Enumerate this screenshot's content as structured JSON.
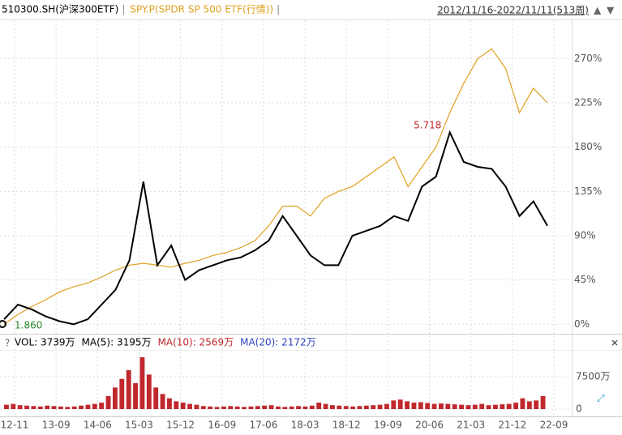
{
  "chart_data": [
    {
      "type": "line",
      "date_range": "2012/11/16-2022/11/11(513周)",
      "ylim": [
        -8,
        309
      ],
      "yticks": [
        {
          "value": 0,
          "label": "0%"
        },
        {
          "value": 45,
          "label": "45%"
        },
        {
          "value": 90,
          "label": "90%"
        },
        {
          "value": 135,
          "label": "135%"
        },
        {
          "value": 180,
          "label": "180%"
        },
        {
          "value": 225,
          "label": "225%"
        },
        {
          "value": 270,
          "label": "270%"
        }
      ],
      "grid": true,
      "series": [
        {
          "name": "510300.SH(沪深300ETF)",
          "color": "#000000",
          "values": [
            5,
            20,
            15,
            8,
            3,
            0,
            5,
            20,
            35,
            65,
            145,
            60,
            80,
            45,
            55,
            60,
            65,
            68,
            75,
            85,
            110,
            90,
            70,
            60,
            60,
            90,
            95,
            100,
            110,
            105,
            140,
            150,
            195,
            165,
            160,
            158,
            140,
            110,
            125,
            100
          ]
        },
        {
          "name": "SPY.P(SPDR SP 500 ETF(行情))",
          "color": "#e0a020",
          "values": [
            0,
            10,
            18,
            25,
            33,
            38,
            42,
            48,
            55,
            60,
            62,
            60,
            58,
            62,
            65,
            70,
            73,
            78,
            85,
            100,
            120,
            120,
            110,
            128,
            135,
            140,
            150,
            160,
            170,
            140,
            160,
            180,
            215,
            245,
            270,
            280,
            260,
            215,
            240,
            225
          ]
        }
      ],
      "annotations": [
        {
          "text": "5.718",
          "color": "#c0282d"
        },
        {
          "text": "1.860",
          "color": "#2a8a2a"
        }
      ]
    },
    {
      "type": "bar",
      "indicators": [
        {
          "text": "VOL: 3739万",
          "color": "#000000"
        },
        {
          "text": "MA(5): 3195万",
          "color": "#000000"
        },
        {
          "text": "MA(10): 2569万",
          "color": "#c0282d"
        },
        {
          "text": "MA(20): 2172万",
          "color": "#2a3fc0"
        }
      ],
      "ylim": [
        0,
        13700
      ],
      "yticks": [
        0,
        {
          "value": 7500,
          "label": "7500万"
        }
      ],
      "color": "#c0282d",
      "values": [
        1000,
        1200,
        900,
        800,
        700,
        600,
        800,
        700,
        600,
        500,
        600,
        800,
        1000,
        1200,
        1500,
        3000,
        5000,
        7000,
        9000,
        6000,
        12000,
        8000,
        5000,
        3500,
        2500,
        1800,
        1500,
        1200,
        1000,
        700,
        600,
        500,
        600,
        700,
        600,
        500,
        600,
        700,
        800,
        900,
        600,
        500,
        600,
        700,
        600,
        800,
        1500,
        1200,
        900,
        800,
        700,
        600,
        700,
        800,
        900,
        1000,
        1200,
        2000,
        2200,
        1800,
        1500,
        1600,
        1400,
        1200,
        1300,
        1200,
        1100,
        1000,
        900,
        1000,
        1200,
        900,
        1000,
        1100,
        1200,
        1500,
        2500,
        1800,
        2000,
        3000
      ],
      "xtick_labels": [
        "12-11",
        "13-09",
        "14-06",
        "15-03",
        "15-12",
        "16-09",
        "17-06",
        "18-03",
        "18-12",
        "19-09",
        "20-06",
        "21-03",
        "21-12",
        "22-09"
      ]
    }
  ]
}
